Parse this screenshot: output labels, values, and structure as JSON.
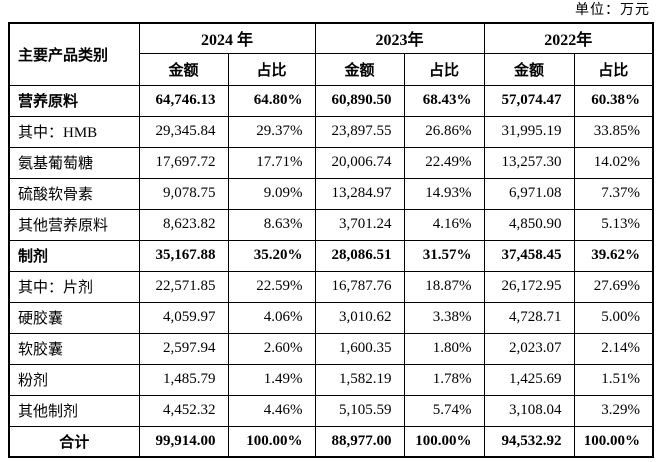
{
  "unit_label": "单位：万元",
  "table": {
    "corner_header": "主要产品类别",
    "year_headers": [
      "2024 年",
      "2023年",
      "2022年"
    ],
    "sub_headers": [
      "金额",
      "占比"
    ],
    "rows": [
      {
        "label": "营养原料",
        "bold": true,
        "total": false,
        "values": [
          "64,746.13",
          "64.80%",
          "60,890.50",
          "68.43%",
          "57,074.47",
          "60.38%"
        ]
      },
      {
        "label": "其中：HMB",
        "bold": false,
        "total": false,
        "values": [
          "29,345.84",
          "29.37%",
          "23,897.55",
          "26.86%",
          "31,995.19",
          "33.85%"
        ]
      },
      {
        "label": "氨基葡萄糖",
        "bold": false,
        "total": false,
        "values": [
          "17,697.72",
          "17.71%",
          "20,006.74",
          "22.49%",
          "13,257.30",
          "14.02%"
        ]
      },
      {
        "label": "硫酸软骨素",
        "bold": false,
        "total": false,
        "values": [
          "9,078.75",
          "9.09%",
          "13,284.97",
          "14.93%",
          "6,971.08",
          "7.37%"
        ]
      },
      {
        "label": "其他营养原料",
        "bold": false,
        "total": false,
        "values": [
          "8,623.82",
          "8.63%",
          "3,701.24",
          "4.16%",
          "4,850.90",
          "5.13%"
        ]
      },
      {
        "label": "制剂",
        "bold": true,
        "total": false,
        "values": [
          "35,167.88",
          "35.20%",
          "28,086.51",
          "31.57%",
          "37,458.45",
          "39.62%"
        ]
      },
      {
        "label": "其中：片剂",
        "bold": false,
        "total": false,
        "values": [
          "22,571.85",
          "22.59%",
          "16,787.76",
          "18.87%",
          "26,172.95",
          "27.69%"
        ]
      },
      {
        "label": "硬胶囊",
        "bold": false,
        "total": false,
        "values": [
          "4,059.97",
          "4.06%",
          "3,010.62",
          "3.38%",
          "4,728.71",
          "5.00%"
        ]
      },
      {
        "label": "软胶囊",
        "bold": false,
        "total": false,
        "values": [
          "2,597.94",
          "2.60%",
          "1,600.35",
          "1.80%",
          "2,023.07",
          "2.14%"
        ]
      },
      {
        "label": "粉剂",
        "bold": false,
        "total": false,
        "values": [
          "1,485.79",
          "1.49%",
          "1,582.19",
          "1.78%",
          "1,425.69",
          "1.51%"
        ]
      },
      {
        "label": "其他制剂",
        "bold": false,
        "total": false,
        "values": [
          "4,452.32",
          "4.46%",
          "5,105.59",
          "5.74%",
          "3,108.04",
          "3.29%"
        ]
      },
      {
        "label": "合计",
        "bold": true,
        "total": true,
        "values": [
          "99,914.00",
          "100.00%",
          "88,977.00",
          "100.00%",
          "94,532.92",
          "100.00%"
        ]
      }
    ]
  }
}
